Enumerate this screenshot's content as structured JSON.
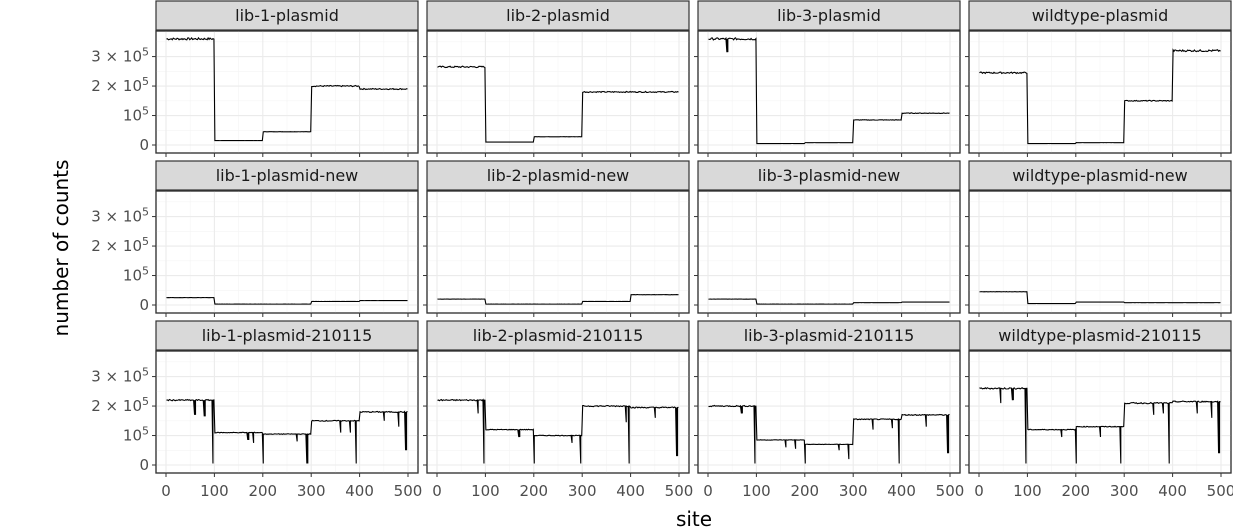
{
  "chart_data": {
    "type": "line",
    "xlabel": "site",
    "ylabel": "number of counts",
    "xlim": [
      0,
      500
    ],
    "ylim": [
      0,
      380000
    ],
    "x_ticks": [
      {
        "v": 0,
        "label": "0"
      },
      {
        "v": 100,
        "label": "100"
      },
      {
        "v": 200,
        "label": "200"
      },
      {
        "v": 300,
        "label": "300"
      },
      {
        "v": 400,
        "label": "400"
      },
      {
        "v": 500,
        "label": "500"
      }
    ],
    "y_ticks": [
      {
        "v": 0,
        "base": "0",
        "exp": ""
      },
      {
        "v": 100000,
        "base": "10",
        "exp": "5"
      },
      {
        "v": 200000,
        "base": "2 × 10",
        "exp": "5"
      },
      {
        "v": 300000,
        "base": "3 × 10",
        "exp": "5"
      }
    ],
    "grid": true,
    "facets": [
      {
        "title": "lib-1-plasmid",
        "levels": [
          [
            1,
            100,
            360000
          ],
          [
            101,
            200,
            15000
          ],
          [
            201,
            300,
            45000
          ],
          [
            301,
            400,
            200000
          ],
          [
            401,
            500,
            190000
          ]
        ],
        "dips": []
      },
      {
        "title": "lib-2-plasmid",
        "levels": [
          [
            1,
            100,
            265000
          ],
          [
            101,
            200,
            10000
          ],
          [
            201,
            300,
            28000
          ],
          [
            301,
            400,
            180000
          ],
          [
            401,
            500,
            180000
          ]
        ],
        "dips": []
      },
      {
        "title": "lib-3-plasmid",
        "levels": [
          [
            1,
            100,
            360000
          ],
          [
            101,
            200,
            5000
          ],
          [
            201,
            300,
            8000
          ],
          [
            301,
            400,
            85000
          ],
          [
            401,
            500,
            108000
          ]
        ],
        "dips": [
          [
            40,
            315000
          ]
        ]
      },
      {
        "title": "wildtype-plasmid",
        "levels": [
          [
            1,
            100,
            245000
          ],
          [
            101,
            200,
            5000
          ],
          [
            201,
            300,
            8000
          ],
          [
            301,
            400,
            150000
          ],
          [
            401,
            500,
            320000
          ]
        ],
        "dips": []
      },
      {
        "title": "lib-1-plasmid-new",
        "levels": [
          [
            1,
            100,
            25000
          ],
          [
            101,
            200,
            3000
          ],
          [
            201,
            300,
            3000
          ],
          [
            301,
            400,
            12000
          ],
          [
            401,
            500,
            15000
          ]
        ],
        "dips": []
      },
      {
        "title": "lib-2-plasmid-new",
        "levels": [
          [
            1,
            100,
            20000
          ],
          [
            101,
            200,
            3000
          ],
          [
            201,
            300,
            3000
          ],
          [
            301,
            400,
            12000
          ],
          [
            401,
            500,
            35000
          ]
        ],
        "dips": []
      },
      {
        "title": "lib-3-plasmid-new",
        "levels": [
          [
            1,
            100,
            20000
          ],
          [
            101,
            200,
            3000
          ],
          [
            201,
            300,
            3000
          ],
          [
            301,
            400,
            8000
          ],
          [
            401,
            500,
            10000
          ]
        ],
        "dips": []
      },
      {
        "title": "wildtype-plasmid-new",
        "levels": [
          [
            1,
            100,
            45000
          ],
          [
            101,
            200,
            5000
          ],
          [
            201,
            300,
            10000
          ],
          [
            301,
            400,
            8000
          ],
          [
            401,
            500,
            8000
          ]
        ],
        "dips": []
      },
      {
        "title": "lib-1-plasmid-210115",
        "levels": [
          [
            1,
            100,
            220000
          ],
          [
            101,
            200,
            110000
          ],
          [
            201,
            300,
            105000
          ],
          [
            301,
            400,
            150000
          ],
          [
            401,
            500,
            180000
          ]
        ],
        "dips": [
          [
            60,
            170000
          ],
          [
            80,
            165000
          ],
          [
            97,
            5000
          ],
          [
            170,
            85000
          ],
          [
            181,
            75000
          ],
          [
            201,
            5000
          ],
          [
            271,
            80000
          ],
          [
            292,
            5000
          ],
          [
            361,
            110000
          ],
          [
            381,
            110000
          ],
          [
            393,
            5000
          ],
          [
            451,
            150000
          ],
          [
            481,
            130000
          ],
          [
            496,
            50000
          ]
        ]
      },
      {
        "title": "lib-2-plasmid-210115",
        "levels": [
          [
            1,
            100,
            220000
          ],
          [
            101,
            200,
            120000
          ],
          [
            201,
            300,
            100000
          ],
          [
            301,
            400,
            200000
          ],
          [
            401,
            500,
            195000
          ]
        ],
        "dips": [
          [
            85,
            175000
          ],
          [
            97,
            5000
          ],
          [
            170,
            95000
          ],
          [
            201,
            5000
          ],
          [
            279,
            75000
          ],
          [
            297,
            5000
          ],
          [
            391,
            145000
          ],
          [
            397,
            5000
          ],
          [
            451,
            160000
          ],
          [
            496,
            30000
          ]
        ]
      },
      {
        "title": "lib-3-plasmid-210115",
        "levels": [
          [
            1,
            100,
            200000
          ],
          [
            101,
            200,
            85000
          ],
          [
            201,
            300,
            70000
          ],
          [
            301,
            400,
            155000
          ],
          [
            401,
            500,
            170000
          ]
        ],
        "dips": [
          [
            70,
            175000
          ],
          [
            97,
            5000
          ],
          [
            161,
            60000
          ],
          [
            181,
            55000
          ],
          [
            201,
            5000
          ],
          [
            271,
            50000
          ],
          [
            291,
            20000
          ],
          [
            341,
            120000
          ],
          [
            381,
            125000
          ],
          [
            395,
            5000
          ],
          [
            451,
            130000
          ],
          [
            496,
            40000
          ]
        ]
      },
      {
        "title": "wildtype-plasmid-210115",
        "levels": [
          [
            1,
            100,
            260000
          ],
          [
            101,
            200,
            120000
          ],
          [
            201,
            300,
            130000
          ],
          [
            301,
            400,
            210000
          ],
          [
            401,
            500,
            215000
          ]
        ],
        "dips": [
          [
            45,
            210000
          ],
          [
            70,
            220000
          ],
          [
            97,
            5000
          ],
          [
            171,
            95000
          ],
          [
            201,
            5000
          ],
          [
            251,
            95000
          ],
          [
            293,
            5000
          ],
          [
            361,
            170000
          ],
          [
            381,
            175000
          ],
          [
            393,
            5000
          ],
          [
            451,
            175000
          ],
          [
            481,
            160000
          ],
          [
            496,
            40000
          ]
        ]
      }
    ]
  }
}
